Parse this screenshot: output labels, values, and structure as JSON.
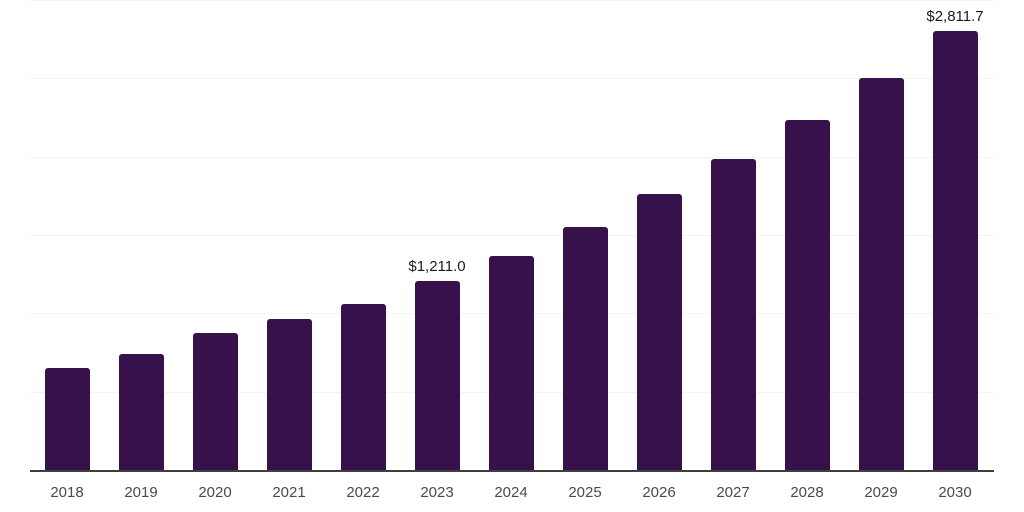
{
  "chart": {
    "background_color": "#ffffff",
    "bar_color": "#36114b",
    "grid_color": "#f2f2f2",
    "axis_color": "#3f3f3f",
    "data_label_color": "#1b1b1b",
    "tick_label_color": "#4a4a4a"
  },
  "chart_data": {
    "type": "bar",
    "title": "",
    "xlabel": "",
    "ylabel": "",
    "legend": "none",
    "grid": "horizontal",
    "ylim": [
      0,
      3000
    ],
    "grid_step": 500,
    "categories": [
      "2018",
      "2019",
      "2020",
      "2021",
      "2022",
      "2023",
      "2024",
      "2025",
      "2026",
      "2027",
      "2028",
      "2029",
      "2030"
    ],
    "values": [
      655,
      745,
      879,
      968,
      1066,
      1211.0,
      1372,
      1557,
      1767,
      1991,
      2240,
      2507,
      2811.7
    ],
    "data_labels": {
      "2023": "$1,211.0",
      "2030": "$2,811.7"
    }
  }
}
